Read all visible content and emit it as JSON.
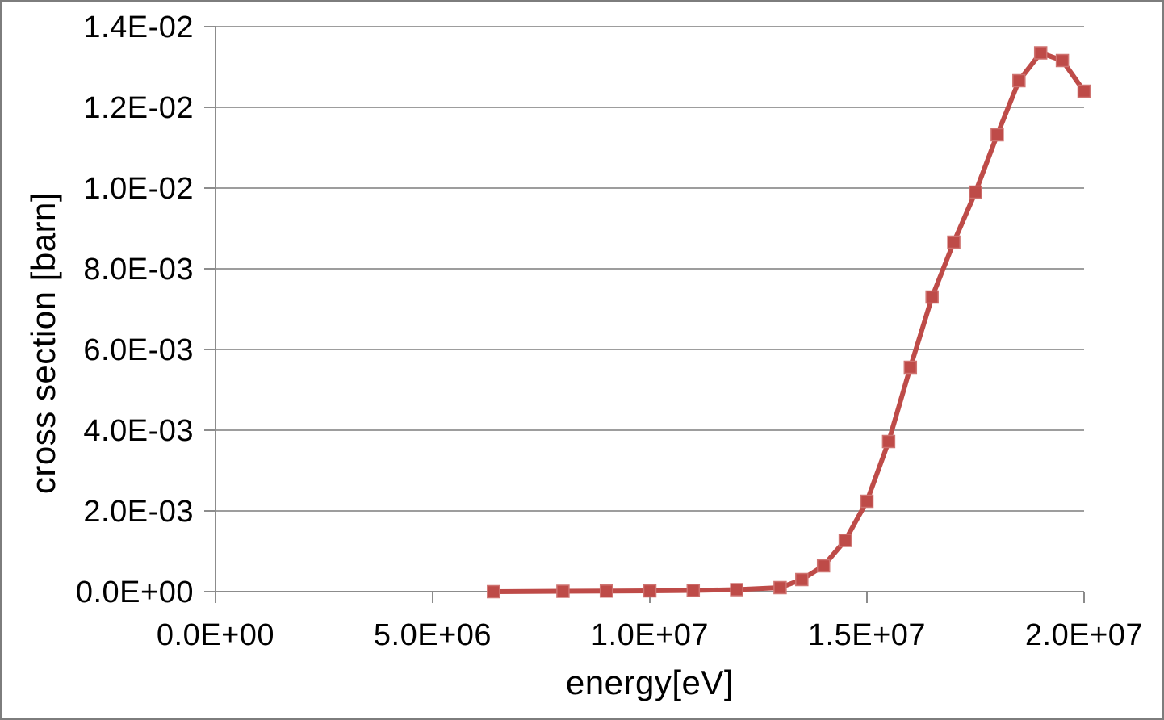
{
  "chart_data": {
    "type": "line",
    "title": "",
    "xlabel": "energy[eV]",
    "ylabel": "cross section [barn]",
    "x": [
      6400000,
      8000000,
      9000000,
      10000000,
      11000000,
      12000000,
      13000000,
      13500000,
      14000000,
      14500000,
      15000000,
      15500000,
      16000000,
      16500000,
      17000000,
      17500000,
      18000000,
      18500000,
      19000000,
      19500000,
      20000000
    ],
    "series": [
      {
        "name": "cross section",
        "values": [
          0,
          1e-05,
          1.5e-05,
          2e-05,
          3e-05,
          5e-05,
          0.0001,
          0.0003,
          0.00064,
          0.00127,
          0.00224,
          0.00372,
          0.00556,
          0.0073,
          0.00866,
          0.0099,
          0.01132,
          0.01266,
          0.01335,
          0.01316,
          0.0124
        ]
      }
    ],
    "xlim": [
      0,
      20000000
    ],
    "ylim": [
      0,
      0.014
    ],
    "x_ticks": [
      {
        "value": 0,
        "label": "0.0E+00"
      },
      {
        "value": 5000000,
        "label": "5.0E+06"
      },
      {
        "value": 10000000,
        "label": "1.0E+07"
      },
      {
        "value": 15000000,
        "label": "1.5E+07"
      },
      {
        "value": 20000000,
        "label": "2.0E+07"
      }
    ],
    "y_ticks": [
      {
        "value": 0,
        "label": "0.0E+00"
      },
      {
        "value": 0.002,
        "label": "2.0E-03"
      },
      {
        "value": 0.004,
        "label": "4.0E-03"
      },
      {
        "value": 0.006,
        "label": "6.0E-03"
      },
      {
        "value": 0.008,
        "label": "8.0E-03"
      },
      {
        "value": 0.01,
        "label": "1.0E-02"
      },
      {
        "value": 0.012,
        "label": "1.2E-02"
      },
      {
        "value": 0.014,
        "label": "1.4E-02"
      }
    ],
    "grid": "horizontal-only",
    "legend": "none",
    "marker": "square",
    "colors": {
      "series": "#be4b48",
      "marker_edge": "#cf7370",
      "gridline": "#9d9d9d",
      "axis": "#8c8c8c",
      "text": "#000000",
      "frame_border": "#7d7d7d",
      "background": "#ffffff"
    }
  }
}
